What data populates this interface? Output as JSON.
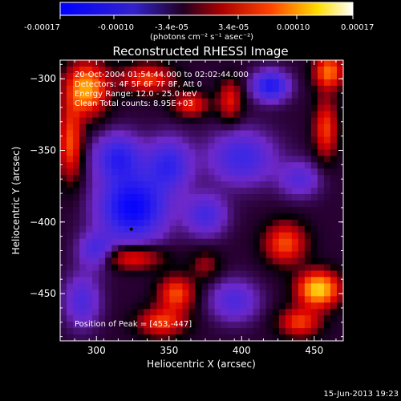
{
  "colorbar": {
    "ticks": [
      "-0.00017",
      "-0.00010",
      "-3.4e-05",
      "3.4e-05",
      "0.00010",
      "0.00017"
    ],
    "unit_label": "(photons cm⁻² s⁻¹ asec⁻²)",
    "colors": [
      "#0000ff",
      "#4433ee",
      "#2b0a2b",
      "#aa0000",
      "#ff5500",
      "#ffe000",
      "#ffffff"
    ]
  },
  "chart_data": {
    "type": "heatmap",
    "title": "Reconstructed RHESSI Image",
    "xlabel": "Heliocentric X (arcsec)",
    "ylabel": "Heliocentric Y (arcsec)",
    "xlim": [
      275,
      470
    ],
    "ylim": [
      -483,
      -287
    ],
    "xticks": [
      300,
      350,
      400,
      450
    ],
    "yticks": [
      -300,
      -350,
      -400,
      -450
    ],
    "annotations": [
      "20-Oct-2004 01:54:44.000 to 02:02:44.000",
      "Detectors: 4F 5F 6F 7F 8F, Att 0",
      "Energy Range: 12.0 - 25.0 keV",
      "Clean     Total counts: 8.95E+03"
    ],
    "peak_label": "Position of Peak = [453,-447]",
    "peak": [
      453,
      -447
    ],
    "marker": [
      324,
      -405
    ],
    "regions": [
      {
        "x": 293,
        "y": -307,
        "level": 0.85,
        "sx": 14,
        "sy": 18
      },
      {
        "x": 335,
        "y": -300,
        "level": 0.55,
        "sx": 18,
        "sy": 10
      },
      {
        "x": 282,
        "y": -345,
        "level": 0.6,
        "sx": 8,
        "sy": 25
      },
      {
        "x": 365,
        "y": -318,
        "level": 0.5,
        "sx": 12,
        "sy": 8
      },
      {
        "x": 392,
        "y": -315,
        "level": 0.45,
        "sx": 8,
        "sy": 14
      },
      {
        "x": 460,
        "y": -295,
        "level": 0.7,
        "sx": 10,
        "sy": 12
      },
      {
        "x": 458,
        "y": -335,
        "level": 0.55,
        "sx": 8,
        "sy": 20
      },
      {
        "x": 325,
        "y": -425,
        "level": 0.5,
        "sx": 20,
        "sy": 8
      },
      {
        "x": 355,
        "y": -450,
        "level": 0.6,
        "sx": 12,
        "sy": 12
      },
      {
        "x": 345,
        "y": -470,
        "level": 0.55,
        "sx": 16,
        "sy": 10
      },
      {
        "x": 453,
        "y": -447,
        "level": 1.0,
        "sx": 14,
        "sy": 12
      },
      {
        "x": 430,
        "y": -415,
        "level": 0.6,
        "sx": 14,
        "sy": 14
      },
      {
        "x": 440,
        "y": -470,
        "level": 0.55,
        "sx": 14,
        "sy": 10
      },
      {
        "x": 375,
        "y": -430,
        "level": 0.25,
        "sx": 10,
        "sy": 10
      },
      {
        "x": 325,
        "y": -390,
        "level": -0.9,
        "sx": 22,
        "sy": 22
      },
      {
        "x": 315,
        "y": -355,
        "level": -0.6,
        "sx": 16,
        "sy": 16
      },
      {
        "x": 350,
        "y": -360,
        "level": -0.55,
        "sx": 15,
        "sy": 18
      },
      {
        "x": 420,
        "y": -305,
        "level": -0.7,
        "sx": 12,
        "sy": 10
      },
      {
        "x": 400,
        "y": -355,
        "level": -0.5,
        "sx": 22,
        "sy": 18
      },
      {
        "x": 375,
        "y": -395,
        "level": -0.45,
        "sx": 14,
        "sy": 14
      },
      {
        "x": 440,
        "y": -370,
        "level": -0.35,
        "sx": 14,
        "sy": 12
      },
      {
        "x": 395,
        "y": -455,
        "level": -0.4,
        "sx": 16,
        "sy": 14
      },
      {
        "x": 290,
        "y": -455,
        "level": -0.4,
        "sx": 12,
        "sy": 18
      },
      {
        "x": 300,
        "y": -420,
        "level": -0.45,
        "sx": 12,
        "sy": 12
      }
    ]
  },
  "footer": {
    "timestamp": "15-Jun-2013 19:23"
  }
}
